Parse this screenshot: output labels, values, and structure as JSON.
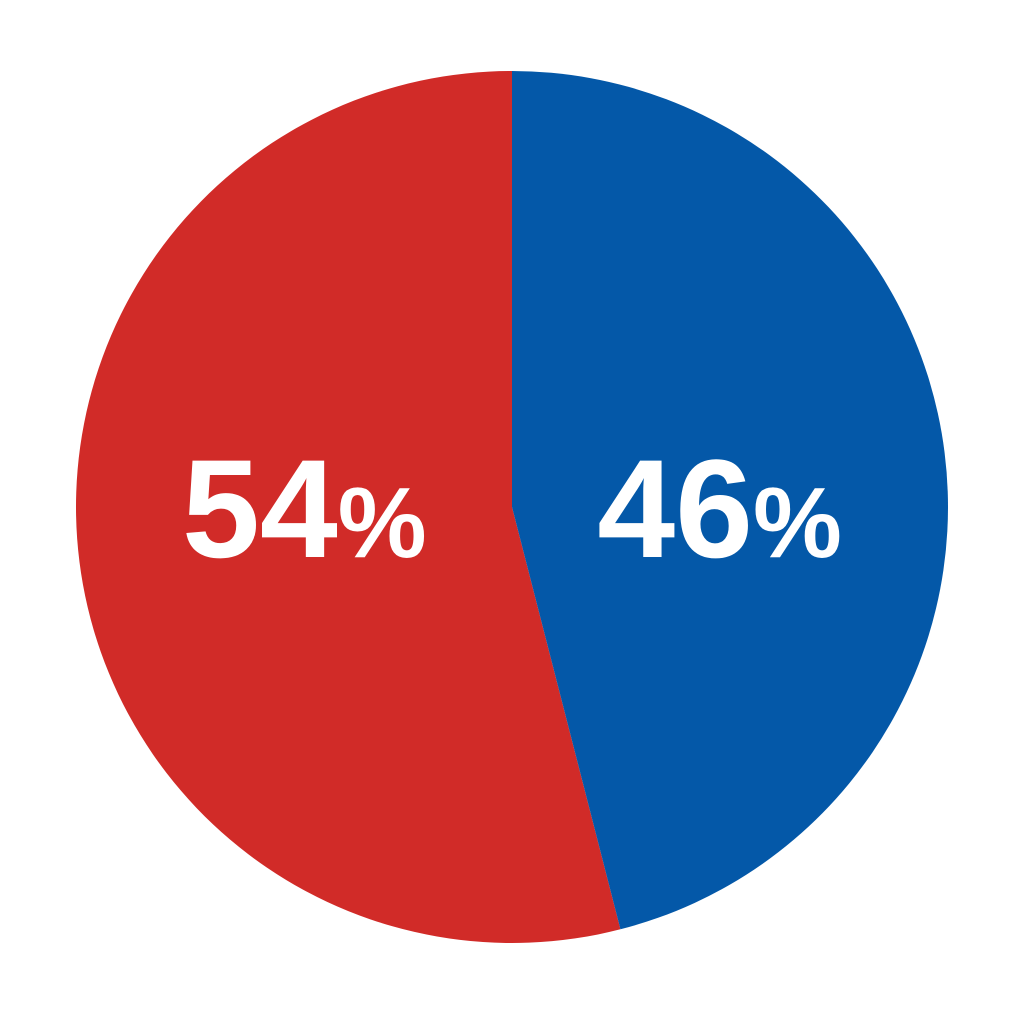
{
  "chart_data": {
    "type": "pie",
    "title": "",
    "slices": [
      {
        "label": "54%",
        "value": 54,
        "color": "#D12B28"
      },
      {
        "label": "46%",
        "value": 46,
        "color": "#0458A8"
      }
    ],
    "start": "top",
    "direction": "counterclockwise-first-slice-left",
    "legend": "none"
  }
}
